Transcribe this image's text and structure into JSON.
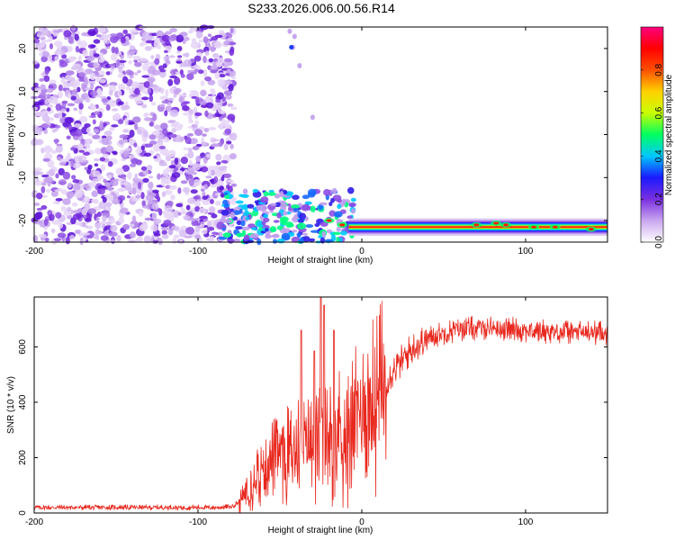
{
  "title": "S233.2026.006.00.56.R14",
  "chart_data": [
    {
      "type": "heatmap",
      "name": "spectrogram",
      "xlabel": "Height of straight line (km)",
      "ylabel": "Frequency (Hz)",
      "xlim": [
        -200,
        150
      ],
      "ylim": [
        -25,
        25
      ],
      "xticks": [
        -200,
        -100,
        0,
        100
      ],
      "yticks": [
        -20,
        -10,
        0,
        10,
        20
      ],
      "colorbar": {
        "label": "Normalized spectral amplitude",
        "range": [
          0.0,
          1.0
        ],
        "ticks": [
          "0.0",
          "0.2",
          "0.4",
          "0.6",
          "0.8"
        ],
        "colors": [
          "#ffffff",
          "#c9a6ef",
          "#7a2ee0",
          "#1a1aff",
          "#00c8ff",
          "#00ff60",
          "#c8ff00",
          "#ffd000",
          "#ff5000",
          "#ff0000",
          "#ff0080"
        ]
      },
      "features": [
        {
          "label": "noise",
          "x_range": [
            -200,
            -82
          ],
          "freq_range": [
            -25,
            25
          ],
          "level": 0.1
        },
        {
          "label": "carrier",
          "x_range": [
            -85,
            150
          ],
          "freq_center": -21.5,
          "level": 0.9
        }
      ]
    },
    {
      "type": "line",
      "name": "snr",
      "xlabel": "Height of straight line (km)",
      "ylabel": "SNR (10 * v/v)",
      "xlim": [
        -200,
        150
      ],
      "ylim": [
        0,
        780
      ],
      "xticks": [
        -200,
        -100,
        0,
        100
      ],
      "yticks": [
        0,
        200,
        400,
        600
      ],
      "color": "#e8281e",
      "profile": {
        "x": [
          -200,
          -90,
          -80,
          -75,
          -70,
          -65,
          -60,
          -50,
          -40,
          -30,
          -20,
          -10,
          -5,
          0,
          10,
          20,
          30,
          40,
          50,
          60,
          80,
          100,
          120,
          150
        ],
        "y": [
          20,
          20,
          22,
          40,
          90,
          150,
          180,
          210,
          240,
          250,
          280,
          320,
          340,
          360,
          430,
          520,
          590,
          630,
          650,
          665,
          670,
          660,
          655,
          650
        ]
      },
      "spikes": [
        {
          "x": -37,
          "y": 660
        },
        {
          "x": -29,
          "y": 585
        },
        {
          "x": -25,
          "y": 780
        },
        {
          "x": -23,
          "y": 750
        },
        {
          "x": -17,
          "y": 660
        }
      ]
    }
  ]
}
